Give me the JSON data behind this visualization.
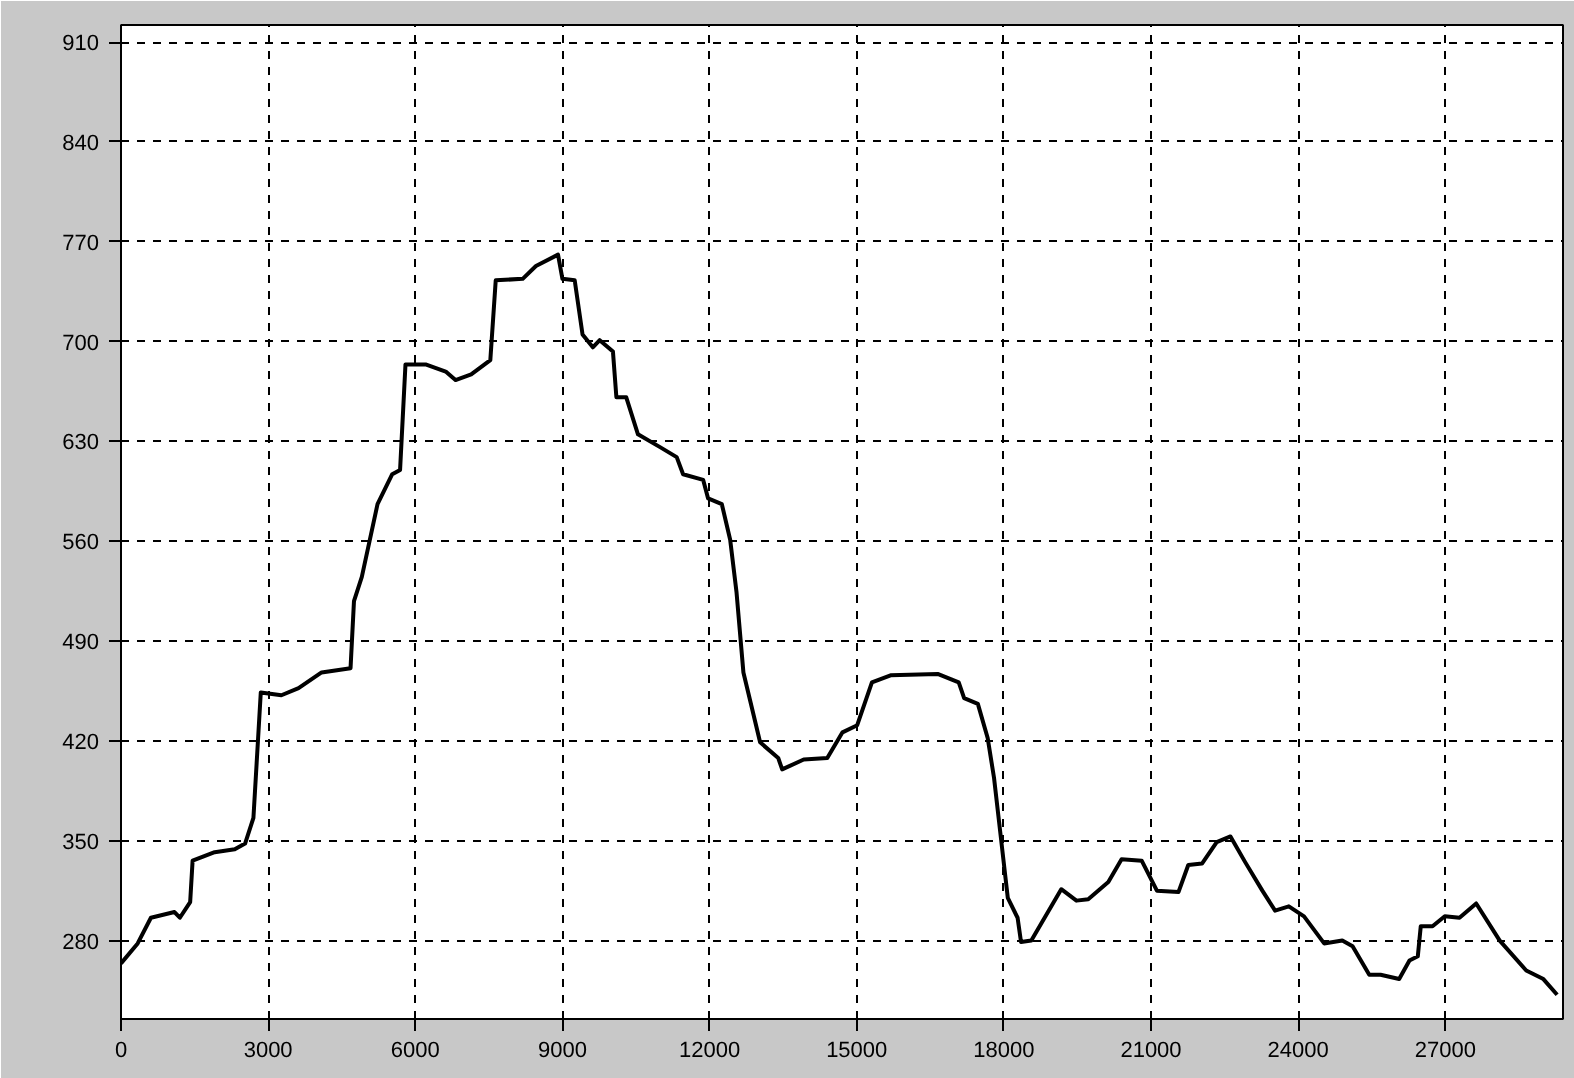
{
  "chart_data": {
    "type": "line",
    "xlim": [
      0,
      29400
    ],
    "ylim": [
      225,
      922
    ],
    "xticks": [
      0,
      3000,
      6000,
      9000,
      12000,
      15000,
      18000,
      21000,
      24000,
      27000
    ],
    "yticks": [
      280,
      350,
      420,
      490,
      560,
      630,
      700,
      770,
      840,
      910
    ],
    "grid": true,
    "x": [
      0,
      340,
      610,
      1090,
      1200,
      1410,
      1460,
      1910,
      2320,
      2530,
      2700,
      2850,
      3270,
      3620,
      4090,
      4680,
      4750,
      4910,
      5230,
      5530,
      5690,
      5800,
      6210,
      6620,
      6820,
      7140,
      7530,
      7640,
      8190,
      8460,
      8910,
      9000,
      9250,
      9410,
      9620,
      9760,
      10030,
      10100,
      10300,
      10540,
      10990,
      11330,
      11460,
      11870,
      11970,
      12250,
      12420,
      12550,
      12690,
      12850,
      13030,
      13400,
      13480,
      13920,
      14400,
      14710,
      15010,
      15310,
      15690,
      16650,
      17080,
      17190,
      17470,
      17670,
      17800,
      17940,
      18080,
      18280,
      18350,
      18560,
      19170,
      19480,
      19720,
      20130,
      20400,
      20810,
      21120,
      21560,
      21760,
      22040,
      22340,
      22620,
      22920,
      23270,
      23530,
      23810,
      24120,
      24530,
      24900,
      25110,
      25450,
      25680,
      26060,
      26270,
      26440,
      26500,
      26740,
      26990,
      27290,
      27630,
      28110,
      28650,
      29000,
      29280
    ],
    "series": [
      {
        "color": "#000000",
        "values": [
          264,
          278,
          296,
          300,
          296,
          307,
          336,
          342,
          344,
          348,
          366,
          454,
          452,
          457,
          468,
          471,
          518,
          535,
          586,
          607,
          610,
          684,
          684,
          679,
          673,
          677,
          687,
          743,
          744,
          753,
          761,
          744,
          743,
          705,
          696,
          701,
          693,
          661,
          661,
          635,
          626,
          619,
          607,
          603,
          590,
          586,
          561,
          524,
          468,
          445,
          419,
          408,
          400,
          407,
          408,
          426,
          431,
          461,
          466,
          467,
          461,
          450,
          446,
          422,
          394,
          352,
          310,
          296,
          279,
          280,
          316,
          308,
          309,
          321,
          337,
          336,
          315,
          314,
          333,
          334,
          349,
          353,
          335,
          315,
          301,
          304,
          297,
          278,
          280,
          276,
          256,
          256,
          253,
          266,
          269,
          290,
          290,
          297,
          296,
          306,
          280,
          259,
          253,
          242
        ]
      }
    ]
  }
}
